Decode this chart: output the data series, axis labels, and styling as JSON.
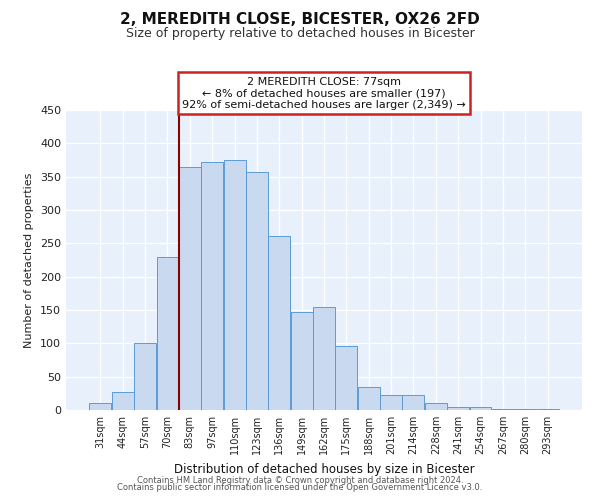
{
  "title": "2, MEREDITH CLOSE, BICESTER, OX26 2FD",
  "subtitle": "Size of property relative to detached houses in Bicester",
  "xlabel": "Distribution of detached houses by size in Bicester",
  "ylabel": "Number of detached properties",
  "bar_labels": [
    "31sqm",
    "44sqm",
    "57sqm",
    "70sqm",
    "83sqm",
    "97sqm",
    "110sqm",
    "123sqm",
    "136sqm",
    "149sqm",
    "162sqm",
    "175sqm",
    "188sqm",
    "201sqm",
    "214sqm",
    "228sqm",
    "241sqm",
    "254sqm",
    "267sqm",
    "280sqm",
    "293sqm"
  ],
  "bar_values": [
    10,
    27,
    101,
    230,
    365,
    372,
    375,
    357,
    261,
    147,
    155,
    96,
    34,
    22,
    22,
    11,
    5,
    5,
    2,
    2,
    2
  ],
  "bar_color": "#c9d9f0",
  "bar_edge_color": "#5b9bd5",
  "ylim": [
    0,
    450
  ],
  "yticks": [
    0,
    50,
    100,
    150,
    200,
    250,
    300,
    350,
    400,
    450
  ],
  "vline_bin_index": 4,
  "vline_color": "#8b0000",
  "annotation_line1": "2 MEREDITH CLOSE: 77sqm",
  "annotation_line2": "← 8% of detached houses are smaller (197)",
  "annotation_line3": "92% of semi-detached houses are larger (2,349) →",
  "footer1": "Contains HM Land Registry data © Crown copyright and database right 2024.",
  "footer2": "Contains public sector information licensed under the Open Government Licence v3.0.",
  "background_color": "#e8f0fb",
  "fig_background": "#ffffff",
  "grid_color": "#c8d8ee"
}
